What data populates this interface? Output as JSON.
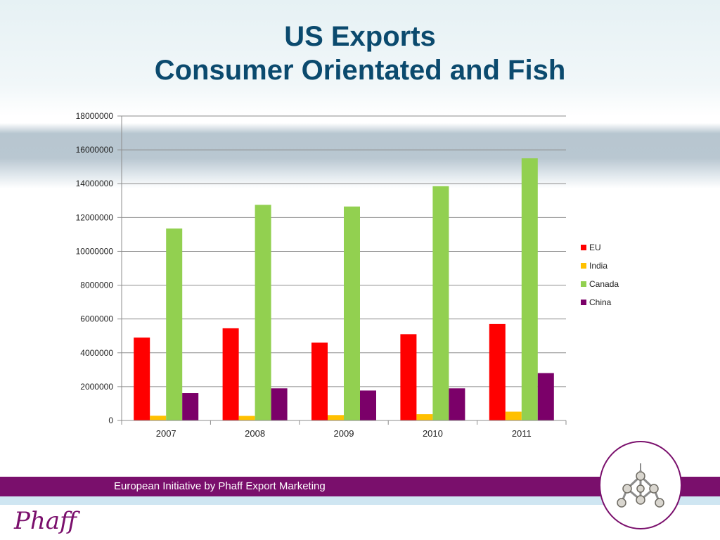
{
  "slide": {
    "title_line1": "US Exports",
    "title_line2": "Consumer Orientated and Fish",
    "footer_text": "European Initiative by Phaff Export Marketing",
    "logo_text": "Phaff"
  },
  "colors": {
    "title": "#0b4a6e",
    "footer_bar": "#7a0f6c",
    "EU": "#ff0000",
    "India": "#ffc000",
    "Canada": "#92d050",
    "China": "#7b0069"
  },
  "chart_data": {
    "type": "bar",
    "categories": [
      "2007",
      "2008",
      "2009",
      "2010",
      "2011"
    ],
    "series": [
      {
        "name": "EU",
        "values": [
          4900000,
          5450000,
          4600000,
          5100000,
          5700000
        ],
        "color": "#ff0000"
      },
      {
        "name": "India",
        "values": [
          280000,
          270000,
          320000,
          370000,
          520000
        ],
        "color": "#ffc000"
      },
      {
        "name": "Canada",
        "values": [
          11350000,
          12750000,
          12650000,
          13850000,
          15500000
        ],
        "color": "#92d050"
      },
      {
        "name": "China",
        "values": [
          1620000,
          1900000,
          1770000,
          1900000,
          2800000
        ],
        "color": "#7b0069"
      }
    ],
    "yticks": [
      "0",
      "2000000",
      "4000000",
      "6000000",
      "8000000",
      "10000000",
      "12000000",
      "14000000",
      "16000000",
      "18000000"
    ],
    "ylim": [
      0,
      18000000
    ],
    "xlabel": "",
    "ylabel": "",
    "grid": true,
    "legend_position": "right"
  }
}
